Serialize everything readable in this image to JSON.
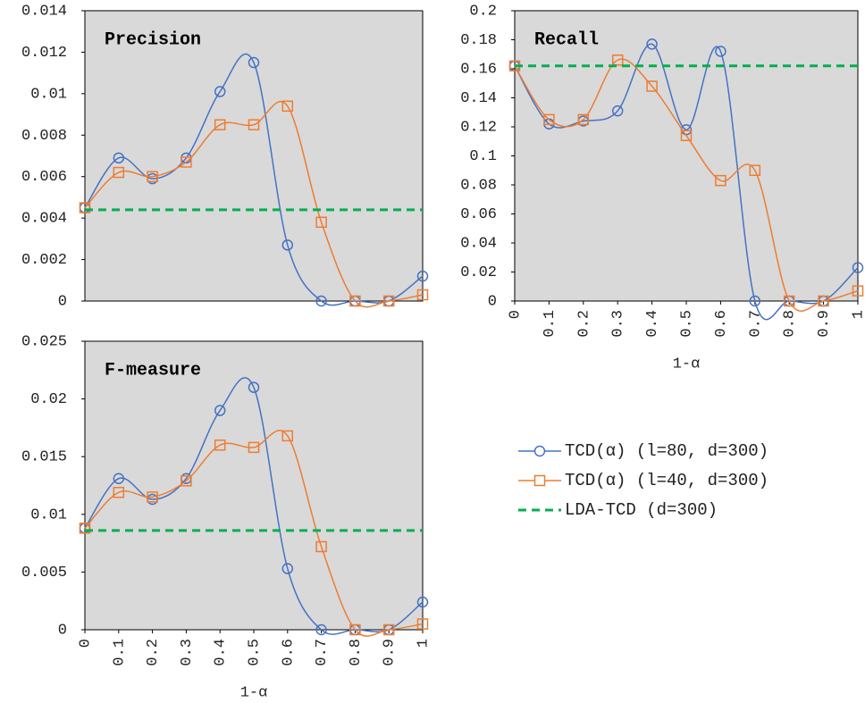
{
  "chart_data": [
    {
      "type": "line",
      "title": "Precision",
      "x": [
        0,
        0.1,
        0.2,
        0.3,
        0.4,
        0.5,
        0.6,
        0.7,
        0.8,
        0.9,
        1
      ],
      "xlim": [
        0,
        1
      ],
      "ylim": [
        0,
        0.014
      ],
      "yticks": [
        0,
        0.002,
        0.004,
        0.006,
        0.008,
        0.01,
        0.012,
        0.014
      ],
      "series": [
        {
          "name": "TCD(α) (l=80, d=300)",
          "color": "#4472c4",
          "marker": "circle",
          "values": [
            0.0045,
            0.0069,
            0.0059,
            0.0069,
            0.0101,
            0.0115,
            0.0027,
            0,
            0,
            0,
            0.0012
          ]
        },
        {
          "name": "TCD(α) (l=40, d=300)",
          "color": "#ed7d31",
          "marker": "square",
          "values": [
            0.0045,
            0.0062,
            0.006,
            0.0067,
            0.0085,
            0.0085,
            0.0094,
            0.0038,
            0,
            0,
            0.0003
          ]
        },
        {
          "name": "LDA-TCD (d=300)",
          "color": "#00b050",
          "dash": true,
          "values": [
            0.0044,
            0.0044,
            0.0044,
            0.0044,
            0.0044,
            0.0044,
            0.0044,
            0.0044,
            0.0044,
            0.0044,
            0.0044
          ]
        }
      ]
    },
    {
      "type": "line",
      "title": "Recall",
      "xlabel": "1-α",
      "x": [
        0,
        0.1,
        0.2,
        0.3,
        0.4,
        0.5,
        0.6,
        0.7,
        0.8,
        0.9,
        1
      ],
      "xlim": [
        0,
        1
      ],
      "xticks": [
        0,
        0.1,
        0.2,
        0.3,
        0.4,
        0.5,
        0.6,
        0.7,
        0.8,
        0.9,
        1
      ],
      "ylim": [
        0,
        0.2
      ],
      "yticks": [
        0,
        0.02,
        0.04,
        0.06,
        0.08,
        0.1,
        0.12,
        0.14,
        0.16,
        0.18,
        0.2
      ],
      "series": [
        {
          "color": "#4472c4",
          "marker": "circle",
          "values": [
            0.162,
            0.122,
            0.124,
            0.131,
            0.177,
            0.118,
            0.172,
            0,
            0,
            0,
            0.023
          ]
        },
        {
          "color": "#ed7d31",
          "marker": "square",
          "values": [
            0.162,
            0.125,
            0.125,
            0.166,
            0.148,
            0.114,
            0.083,
            0.09,
            0,
            0,
            0.007
          ]
        },
        {
          "color": "#00b050",
          "dash": true,
          "values": [
            0.162,
            0.162,
            0.162,
            0.162,
            0.162,
            0.162,
            0.162,
            0.162,
            0.162,
            0.162,
            0.162
          ]
        }
      ]
    },
    {
      "type": "line",
      "title": "F-measure",
      "xlabel": "1-α",
      "x": [
        0,
        0.1,
        0.2,
        0.3,
        0.4,
        0.5,
        0.6,
        0.7,
        0.8,
        0.9,
        1
      ],
      "xlim": [
        0,
        1
      ],
      "xticks": [
        0,
        0.1,
        0.2,
        0.3,
        0.4,
        0.5,
        0.6,
        0.7,
        0.8,
        0.9,
        1
      ],
      "ylim": [
        0,
        0.025
      ],
      "yticks": [
        0,
        0.005,
        0.01,
        0.015,
        0.02,
        0.025
      ],
      "series": [
        {
          "color": "#4472c4",
          "marker": "circle",
          "values": [
            0.0088,
            0.0131,
            0.0113,
            0.0131,
            0.019,
            0.021,
            0.0053,
            0,
            0,
            0,
            0.0024
          ]
        },
        {
          "color": "#ed7d31",
          "marker": "square",
          "values": [
            0.0088,
            0.0119,
            0.0115,
            0.0129,
            0.016,
            0.0158,
            0.0168,
            0.0072,
            0,
            0,
            0.0005
          ]
        },
        {
          "color": "#00b050",
          "dash": true,
          "values": [
            0.0086,
            0.0086,
            0.0086,
            0.0086,
            0.0086,
            0.0086,
            0.0086,
            0.0086,
            0.0086,
            0.0086,
            0.0086
          ]
        }
      ]
    }
  ]
}
